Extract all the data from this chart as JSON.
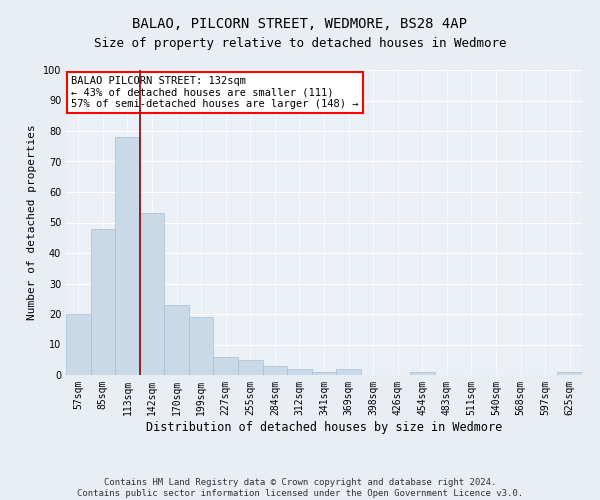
{
  "title": "BALAO, PILCORN STREET, WEDMORE, BS28 4AP",
  "subtitle": "Size of property relative to detached houses in Wedmore",
  "xlabel": "Distribution of detached houses by size in Wedmore",
  "ylabel": "Number of detached properties",
  "categories": [
    "57sqm",
    "85sqm",
    "113sqm",
    "142sqm",
    "170sqm",
    "199sqm",
    "227sqm",
    "255sqm",
    "284sqm",
    "312sqm",
    "341sqm",
    "369sqm",
    "398sqm",
    "426sqm",
    "454sqm",
    "483sqm",
    "511sqm",
    "540sqm",
    "568sqm",
    "597sqm",
    "625sqm"
  ],
  "values": [
    20,
    48,
    78,
    53,
    23,
    19,
    6,
    5,
    3,
    2,
    1,
    2,
    0,
    0,
    1,
    0,
    0,
    0,
    0,
    0,
    1
  ],
  "bar_color": "#c9d9e8",
  "bar_edge_color": "#a8c0d4",
  "ylim": [
    0,
    100
  ],
  "yticks": [
    0,
    10,
    20,
    30,
    40,
    50,
    60,
    70,
    80,
    90,
    100
  ],
  "red_line_x": 2.5,
  "annotation_text": "BALAO PILCORN STREET: 132sqm\n← 43% of detached houses are smaller (111)\n57% of semi-detached houses are larger (148) →",
  "annotation_box_color": "white",
  "annotation_box_edge": "red",
  "footer1": "Contains HM Land Registry data © Crown copyright and database right 2024.",
  "footer2": "Contains public sector information licensed under the Open Government Licence v3.0.",
  "bg_color": "#e8eef4",
  "plot_bg_color": "#eaf0f6",
  "grid_color": "white",
  "title_fontsize": 10,
  "subtitle_fontsize": 9,
  "tick_fontsize": 7,
  "ylabel_fontsize": 8,
  "xlabel_fontsize": 8.5,
  "footer_fontsize": 6.5,
  "annotation_fontsize": 7.5
}
